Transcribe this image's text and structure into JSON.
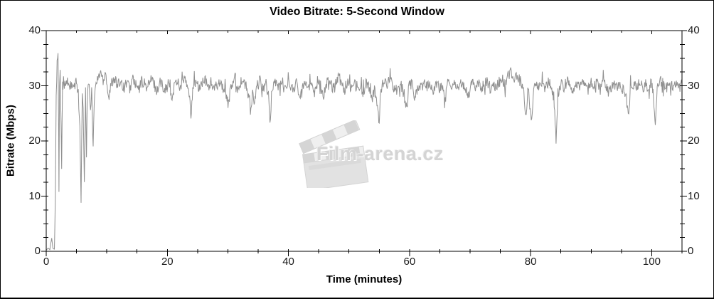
{
  "title": "Video Bitrate: 5-Second Window",
  "watermark": {
    "text": "Film-arena.cz",
    "icon": "clapperboard-icon"
  },
  "chart_data": {
    "type": "line",
    "title": "Video Bitrate: 5-Second Window",
    "xlabel": "Time (minutes)",
    "ylabel": "Bitrate (Mbps)",
    "xlim": [
      0,
      105
    ],
    "ylim": [
      0,
      40
    ],
    "x_major_ticks": [
      0,
      20,
      40,
      60,
      80,
      100
    ],
    "x_minor_step": 5,
    "y_major_ticks": [
      0,
      10,
      20,
      30,
      40
    ],
    "y_minor_step": 2.5,
    "grid": false,
    "legend_position": "none",
    "line_color": "#909090",
    "axis_color": "#000000",
    "tick_label_color": "#1a1a1a",
    "noise": {
      "amplitude": 1.05,
      "substep_minutes": 0.085,
      "seed": 5,
      "spike_chance": 0.06,
      "spike_scale": 2.4
    },
    "series": [
      {
        "name": "video-bitrate",
        "points": [
          [
            0,
            0.2
          ],
          [
            0.3,
            0.6
          ],
          [
            0.6,
            0.3
          ],
          [
            0.9,
            2.4
          ],
          [
            1.1,
            0.5
          ],
          [
            1.35,
            0.4
          ],
          [
            1.5,
            9
          ],
          [
            1.65,
            28
          ],
          [
            1.8,
            34.8
          ],
          [
            1.95,
            35.3
          ],
          [
            2.05,
            22
          ],
          [
            2.1,
            11.2
          ],
          [
            2.2,
            29.5
          ],
          [
            2.3,
            33.2
          ],
          [
            2.45,
            24
          ],
          [
            2.55,
            15.8
          ],
          [
            2.7,
            30.5
          ],
          [
            3,
            29.6
          ],
          [
            3.5,
            30.8
          ],
          [
            4,
            30
          ],
          [
            4.5,
            29.4
          ],
          [
            5,
            30.6
          ],
          [
            5.3,
            29
          ],
          [
            5.55,
            22
          ],
          [
            5.75,
            9
          ],
          [
            5.95,
            28.5
          ],
          [
            6.1,
            25
          ],
          [
            6.3,
            13.2
          ],
          [
            6.5,
            28.8
          ],
          [
            6.65,
            17.3
          ],
          [
            6.85,
            29.6
          ],
          [
            7.1,
            30.8
          ],
          [
            7.3,
            24.8
          ],
          [
            7.5,
            30.2
          ],
          [
            7.75,
            19.5
          ],
          [
            8,
            29
          ],
          [
            8.3,
            30.5
          ],
          [
            8.7,
            31.8
          ],
          [
            9,
            32.6
          ],
          [
            9.4,
            31
          ],
          [
            9.8,
            32.8
          ],
          [
            10.3,
            27.6
          ],
          [
            10.8,
            30.6
          ],
          [
            11.3,
            31.6
          ],
          [
            11.8,
            29.8
          ],
          [
            12.3,
            31.2
          ],
          [
            12.8,
            29.6
          ],
          [
            13.3,
            30.8
          ],
          [
            13.8,
            29.4
          ],
          [
            14.3,
            31.4
          ],
          [
            14.8,
            30
          ],
          [
            15.3,
            29.2
          ],
          [
            15.8,
            31
          ],
          [
            16.3,
            30.2
          ],
          [
            16.8,
            29.6
          ],
          [
            17.3,
            31.2
          ],
          [
            17.8,
            30.4
          ],
          [
            18.3,
            29
          ],
          [
            18.8,
            30.8
          ],
          [
            19.3,
            30
          ],
          [
            19.8,
            29.4
          ],
          [
            20.3,
            30.6
          ],
          [
            20.7,
            27.2
          ],
          [
            21.2,
            30.4
          ],
          [
            21.7,
            31
          ],
          [
            22.2,
            29.6
          ],
          [
            22.7,
            31.4
          ],
          [
            23.2,
            30.2
          ],
          [
            23.6,
            28.4
          ],
          [
            23.9,
            24.4
          ],
          [
            24.2,
            29.8
          ],
          [
            24.7,
            30.8
          ],
          [
            25.2,
            29.4
          ],
          [
            25.7,
            30.4
          ],
          [
            26.2,
            31
          ],
          [
            26.7,
            29.8
          ],
          [
            27.2,
            30.6
          ],
          [
            27.7,
            29.2
          ],
          [
            28.2,
            30.2
          ],
          [
            28.7,
            31
          ],
          [
            29.2,
            29.6
          ],
          [
            29.7,
            28.6
          ],
          [
            30.1,
            26.6
          ],
          [
            30.5,
            29.8
          ],
          [
            31,
            30.8
          ],
          [
            31.5,
            29.4
          ],
          [
            32,
            30.4
          ],
          [
            32.5,
            31
          ],
          [
            33,
            29.8
          ],
          [
            33.5,
            27.8
          ],
          [
            33.8,
            25.6
          ],
          [
            34.1,
            28.8
          ],
          [
            34.4,
            26.4
          ],
          [
            34.8,
            30
          ],
          [
            35.3,
            30.8
          ],
          [
            35.8,
            29.6
          ],
          [
            36.3,
            30.4
          ],
          [
            36.7,
            28
          ],
          [
            36.95,
            22.6
          ],
          [
            37.3,
            29.8
          ],
          [
            37.8,
            31
          ],
          [
            38.3,
            29.6
          ],
          [
            38.8,
            30.6
          ],
          [
            39.3,
            29.2
          ],
          [
            39.8,
            30.8
          ],
          [
            40.3,
            30
          ],
          [
            40.8,
            29.4
          ],
          [
            41.3,
            30.6
          ],
          [
            41.8,
            27.6
          ],
          [
            42.3,
            30.2
          ],
          [
            42.8,
            31
          ],
          [
            43.3,
            29.6
          ],
          [
            43.8,
            30.4
          ],
          [
            44.3,
            29
          ],
          [
            44.8,
            30.8
          ],
          [
            45.3,
            30
          ],
          [
            45.8,
            28.4
          ],
          [
            46.3,
            30.4
          ],
          [
            46.8,
            31.2
          ],
          [
            47.3,
            29.8
          ],
          [
            47.8,
            30.6
          ],
          [
            48.3,
            32
          ],
          [
            48.8,
            30.2
          ],
          [
            49.3,
            29.4
          ],
          [
            49.8,
            30.8
          ],
          [
            50.3,
            29.8
          ],
          [
            50.8,
            31
          ],
          [
            51.3,
            29.2
          ],
          [
            51.8,
            30.4
          ],
          [
            52.3,
            28.6
          ],
          [
            52.8,
            30.6
          ],
          [
            53.3,
            29.8
          ],
          [
            53.8,
            27
          ],
          [
            54.2,
            29.4
          ],
          [
            54.7,
            26.2
          ],
          [
            55,
            24.2
          ],
          [
            55.3,
            29.6
          ],
          [
            55.8,
            31
          ],
          [
            56.3,
            29.8
          ],
          [
            56.8,
            32.2
          ],
          [
            57.3,
            30
          ],
          [
            57.8,
            29.2
          ],
          [
            58.3,
            30.6
          ],
          [
            58.8,
            29.6
          ],
          [
            59.2,
            27.4
          ],
          [
            59.55,
            26.4
          ],
          [
            59.9,
            29.8
          ],
          [
            60.4,
            30.6
          ],
          [
            60.9,
            27.6
          ],
          [
            61.4,
            30.2
          ],
          [
            61.9,
            29.4
          ],
          [
            62.4,
            30.8
          ],
          [
            62.9,
            29.8
          ],
          [
            63.4,
            30.4
          ],
          [
            63.9,
            29
          ],
          [
            64.4,
            30.6
          ],
          [
            64.9,
            29.6
          ],
          [
            65.4,
            30.2
          ],
          [
            65.8,
            27
          ],
          [
            66.3,
            30.4
          ],
          [
            66.8,
            29.6
          ],
          [
            67.3,
            30.8
          ],
          [
            67.8,
            29.2
          ],
          [
            68.3,
            30.6
          ],
          [
            68.8,
            30
          ],
          [
            69.3,
            29.4
          ],
          [
            69.8,
            28.2
          ],
          [
            70.3,
            30.4
          ],
          [
            70.8,
            29.8
          ],
          [
            71.3,
            30.6
          ],
          [
            71.8,
            29.2
          ],
          [
            72.3,
            30.2
          ],
          [
            72.8,
            30.8
          ],
          [
            73.3,
            29.6
          ],
          [
            73.8,
            30.4
          ],
          [
            74.3,
            29.8
          ],
          [
            74.8,
            30.6
          ],
          [
            75.3,
            31.2
          ],
          [
            75.8,
            30.4
          ],
          [
            76.3,
            31.8
          ],
          [
            76.8,
            32.4
          ],
          [
            77.3,
            31.6
          ],
          [
            77.8,
            32
          ],
          [
            78.3,
            30.8
          ],
          [
            78.8,
            29.6
          ],
          [
            79.2,
            24.2
          ],
          [
            79.6,
            29.8
          ],
          [
            80.1,
            23.2
          ],
          [
            80.5,
            29.4
          ],
          [
            81,
            30.6
          ],
          [
            81.5,
            29.8
          ],
          [
            82,
            30.4
          ],
          [
            82.5,
            29.6
          ],
          [
            83,
            31
          ],
          [
            83.5,
            29.4
          ],
          [
            83.9,
            27.6
          ],
          [
            84.2,
            19.2
          ],
          [
            84.5,
            28.6
          ],
          [
            85,
            30.2
          ],
          [
            85.5,
            29.6
          ],
          [
            86,
            30.8
          ],
          [
            86.5,
            29.8
          ],
          [
            87,
            28.4
          ],
          [
            87.5,
            30.2
          ],
          [
            88,
            29.6
          ],
          [
            88.5,
            30.8
          ],
          [
            89,
            30
          ],
          [
            89.5,
            29.4
          ],
          [
            90,
            30.6
          ],
          [
            90.5,
            29.8
          ],
          [
            91,
            30.4
          ],
          [
            91.5,
            29.2
          ],
          [
            92,
            30.6
          ],
          [
            92.5,
            29.6
          ],
          [
            93,
            28.6
          ],
          [
            93.5,
            30.4
          ],
          [
            94,
            29.8
          ],
          [
            94.5,
            30.2
          ],
          [
            95,
            29.4
          ],
          [
            95.5,
            28.8
          ],
          [
            95.9,
            27
          ],
          [
            96.2,
            24.4
          ],
          [
            96.5,
            29.6
          ],
          [
            97,
            30.4
          ],
          [
            97.5,
            29.8
          ],
          [
            98,
            30.6
          ],
          [
            98.5,
            29.6
          ],
          [
            99,
            30.2
          ],
          [
            99.5,
            29.8
          ],
          [
            100,
            30.4
          ],
          [
            100.3,
            28
          ],
          [
            100.6,
            22.7
          ],
          [
            100.9,
            29.4
          ],
          [
            101.4,
            31
          ],
          [
            101.9,
            30.2
          ],
          [
            102.4,
            29.6
          ],
          [
            102.9,
            30.4
          ],
          [
            103.4,
            29.8
          ],
          [
            103.9,
            30.2
          ],
          [
            104.4,
            29.6
          ],
          [
            105,
            30.2
          ]
        ]
      }
    ]
  }
}
